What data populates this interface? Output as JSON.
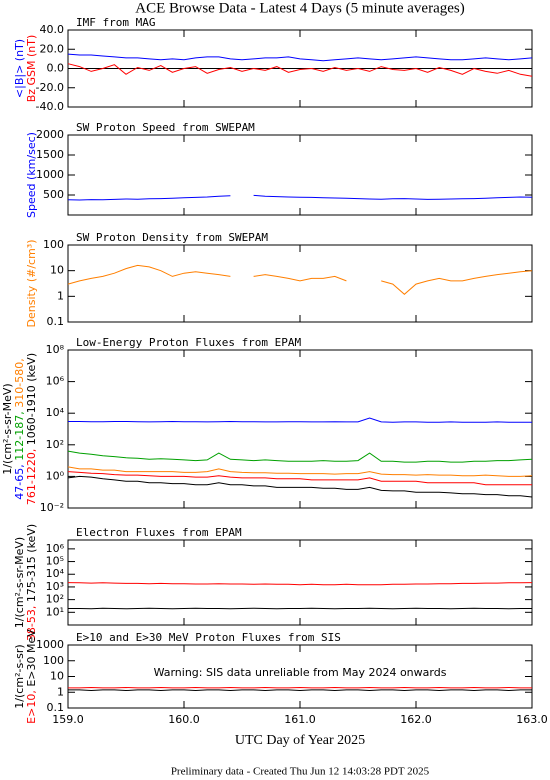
{
  "title": "ACE Browse Data - Latest 4 Days (5 minute averages)",
  "footer": "Preliminary data - Created Thu Jun 12 14:03:28 PDT 2025",
  "chart_data": [
    {
      "type": "line",
      "title": "IMF from MAG",
      "log": false,
      "zero_line": true,
      "ylabel": [
        [
          {
            "text": "<|B|> (nT)",
            "color": "#0000ff"
          }
        ],
        [
          {
            "text": "Bz GSM (nT)",
            "color": "#ff0000"
          }
        ]
      ],
      "xlim": [
        159.0,
        163.0
      ],
      "ylim": [
        -40,
        40
      ],
      "yticks": [
        {
          "value": -40,
          "label": "-40.0"
        },
        {
          "value": -20,
          "label": "-20.0"
        },
        {
          "value": 0,
          "label": "0.0"
        },
        {
          "value": 20,
          "label": "20.0"
        },
        {
          "value": 40,
          "label": "40.0"
        }
      ],
      "x": [
        159.0,
        159.1,
        159.2,
        159.3,
        159.4,
        159.5,
        159.6,
        159.7,
        159.8,
        159.9,
        160.0,
        160.1,
        160.2,
        160.3,
        160.4,
        160.5,
        160.6,
        160.7,
        160.8,
        160.9,
        161.0,
        161.1,
        161.2,
        161.3,
        161.4,
        161.5,
        161.6,
        161.7,
        161.8,
        161.9,
        162.0,
        162.1,
        162.2,
        162.3,
        162.4,
        162.5,
        162.6,
        162.7,
        162.8,
        162.9,
        163.0
      ],
      "series": [
        {
          "color": "#0000ff",
          "values": [
            15,
            14,
            14,
            13,
            12,
            11,
            11,
            10,
            9,
            10,
            9,
            11,
            12,
            12,
            10,
            9,
            10,
            11,
            11,
            12,
            10,
            9,
            8,
            9,
            10,
            11,
            10,
            9,
            10,
            11,
            12,
            11,
            10,
            9,
            9,
            10,
            11,
            10,
            9,
            10,
            11
          ]
        },
        {
          "color": "#ff0000",
          "values": [
            5,
            2,
            -3,
            0,
            4,
            -6,
            1,
            -2,
            3,
            -4,
            0,
            2,
            -5,
            -1,
            1,
            -3,
            0,
            -2,
            2,
            -4,
            -1,
            0,
            -3,
            1,
            -2,
            0,
            -3,
            2,
            -1,
            -2,
            0,
            -4,
            1,
            -2,
            -6,
            0,
            -3,
            -5,
            -2,
            -6,
            -8
          ]
        }
      ]
    },
    {
      "type": "line",
      "title": "SW Proton Speed from SWEPAM",
      "log": false,
      "ylabel": [
        [
          {
            "text": "Speed (km/sec)",
            "color": "#0000ff"
          }
        ]
      ],
      "xlim": [
        159.0,
        163.0
      ],
      "ylim": [
        0,
        2000
      ],
      "yticks": [
        500,
        1000,
        1500,
        2000
      ],
      "x": [
        159.0,
        159.1,
        159.2,
        159.3,
        159.4,
        159.5,
        159.6,
        159.7,
        159.8,
        159.9,
        160.0,
        160.1,
        160.2,
        160.3,
        160.4,
        160.5,
        160.6,
        160.7,
        160.8,
        160.9,
        161.0,
        161.1,
        161.2,
        161.3,
        161.4,
        161.5,
        161.6,
        161.7,
        161.8,
        161.9,
        162.0,
        162.1,
        162.2,
        162.3,
        162.4,
        162.5,
        162.6,
        162.7,
        162.8,
        162.9,
        163.0
      ],
      "series": [
        {
          "color": "#0000ff",
          "values": [
            380,
            375,
            385,
            380,
            390,
            400,
            395,
            405,
            410,
            420,
            430,
            440,
            450,
            470,
            480,
            null,
            490,
            470,
            460,
            450,
            445,
            440,
            430,
            425,
            420,
            410,
            400,
            395,
            405,
            410,
            400,
            390,
            395,
            400,
            405,
            410,
            420,
            430,
            440,
            450,
            445
          ]
        }
      ]
    },
    {
      "type": "line",
      "title": "SW Proton Density from SWEPAM",
      "log": true,
      "ylabel": [
        [
          {
            "text": "Density (#/cm³)",
            "color": "#ff7f00"
          }
        ]
      ],
      "xlim": [
        159.0,
        163.0
      ],
      "ylim": [
        0.1,
        100
      ],
      "yticks": [
        0.1,
        1,
        10,
        100
      ],
      "x": [
        159.0,
        159.1,
        159.2,
        159.3,
        159.4,
        159.5,
        159.6,
        159.7,
        159.8,
        159.9,
        160.0,
        160.1,
        160.2,
        160.3,
        160.4,
        160.5,
        160.6,
        160.7,
        160.8,
        160.9,
        161.0,
        161.1,
        161.2,
        161.3,
        161.4,
        161.5,
        161.6,
        161.7,
        161.8,
        161.9,
        162.0,
        162.1,
        162.2,
        162.3,
        162.4,
        162.5,
        162.6,
        162.7,
        162.8,
        162.9,
        163.0
      ],
      "series": [
        {
          "color": "#ff7f00",
          "values": [
            3,
            4,
            5,
            6,
            8,
            12,
            16,
            14,
            10,
            6,
            8,
            9,
            8,
            7,
            6,
            null,
            6,
            7,
            6,
            5,
            4,
            5,
            5,
            6,
            4,
            null,
            null,
            4,
            3,
            1.2,
            3,
            4,
            5,
            4,
            4,
            5,
            6,
            7,
            8,
            9,
            10
          ]
        }
      ]
    },
    {
      "type": "line",
      "title": "Low-Energy Proton Fluxes from EPAM",
      "log": true,
      "ylabel": [
        [
          {
            "text": "1/(cm²-s-sr-MeV)",
            "color": "#000000"
          }
        ],
        [
          {
            "text": "47-65, ",
            "color": "#0000ff"
          },
          {
            "text": "112-187, ",
            "color": "#00a000"
          },
          {
            "text": "310-580,",
            "color": "#ff7f00"
          }
        ],
        [
          {
            "text": "761-1220, ",
            "color": "#ff0000"
          },
          {
            "text": "1060-1910 (keV)",
            "color": "#000000"
          }
        ]
      ],
      "xlim": [
        159.0,
        163.0
      ],
      "ylim": [
        0.01,
        100000000
      ],
      "yticks": [
        {
          "value": 0.01,
          "label": "10⁻²"
        },
        {
          "value": 1,
          "label": "10⁰"
        },
        {
          "value": 100,
          "label": "10²"
        },
        {
          "value": 10000,
          "label": "10⁴"
        },
        {
          "value": 1000000,
          "label": "10⁶"
        },
        {
          "value": 100000000,
          "label": "10⁸"
        }
      ],
      "x": [
        159.0,
        159.1,
        159.2,
        159.3,
        159.4,
        159.5,
        159.6,
        159.7,
        159.8,
        159.9,
        160.0,
        160.1,
        160.2,
        160.3,
        160.4,
        160.5,
        160.6,
        160.7,
        160.8,
        160.9,
        161.0,
        161.1,
        161.2,
        161.3,
        161.4,
        161.5,
        161.6,
        161.7,
        161.8,
        161.9,
        162.0,
        162.1,
        162.2,
        162.3,
        162.4,
        162.5,
        162.6,
        162.7,
        162.8,
        162.9,
        163.0
      ],
      "series": [
        {
          "color": "#0000ff",
          "values": [
            3000,
            3000,
            2900,
            2900,
            3000,
            3000,
            2900,
            2800,
            2900,
            3000,
            2900,
            2900,
            2800,
            2900,
            3000,
            2900,
            2900,
            2800,
            2800,
            2900,
            2900,
            2800,
            2800,
            2900,
            2800,
            2800,
            5000,
            2800,
            2700,
            2800,
            2800,
            2700,
            2700,
            2800,
            2700,
            2700,
            2700,
            2800,
            2700,
            2700,
            2700
          ]
        },
        {
          "color": "#00a000",
          "values": [
            40,
            30,
            25,
            20,
            18,
            15,
            14,
            12,
            13,
            12,
            11,
            10,
            11,
            30,
            12,
            11,
            10,
            11,
            10,
            9,
            9,
            9,
            10,
            9,
            9,
            10,
            30,
            9,
            9,
            8,
            8,
            9,
            9,
            8,
            8,
            9,
            9,
            10,
            10,
            11,
            12
          ]
        },
        {
          "color": "#ff7f00",
          "values": [
            4,
            3,
            3,
            2.5,
            2.5,
            2,
            2,
            2,
            2,
            2,
            1.8,
            1.8,
            2,
            3,
            2,
            1.8,
            1.7,
            1.7,
            1.6,
            1.6,
            1.5,
            1.5,
            1.5,
            1.4,
            1.5,
            1.5,
            2,
            1.4,
            1.3,
            1.3,
            1.2,
            1.3,
            1.2,
            1.2,
            1.1,
            1.1,
            1.2,
            1.1,
            1.0,
            1.0,
            1.1
          ]
        },
        {
          "color": "#ff0000",
          "values": [
            2,
            1.8,
            1.6,
            1.5,
            1.3,
            1.2,
            1.2,
            1.1,
            1.0,
            1.0,
            1.0,
            0.9,
            0.9,
            1.1,
            0.9,
            0.8,
            0.8,
            0.8,
            0.7,
            0.7,
            0.7,
            0.6,
            0.6,
            0.6,
            0.6,
            0.6,
            0.8,
            0.5,
            0.5,
            0.5,
            0.5,
            0.4,
            0.4,
            0.4,
            0.4,
            0.4,
            0.3,
            0.3,
            0.3,
            0.3,
            0.3
          ]
        },
        {
          "color": "#000000",
          "values": [
            0.8,
            1.0,
            0.9,
            0.7,
            0.6,
            0.5,
            0.5,
            0.4,
            0.4,
            0.35,
            0.35,
            0.3,
            0.3,
            0.4,
            0.3,
            0.3,
            0.25,
            0.25,
            0.2,
            0.2,
            0.2,
            0.2,
            0.18,
            0.18,
            0.15,
            0.15,
            0.2,
            0.13,
            0.12,
            0.12,
            0.1,
            0.1,
            0.1,
            0.09,
            0.08,
            0.08,
            0.07,
            0.07,
            0.06,
            0.06,
            0.05
          ]
        }
      ]
    },
    {
      "type": "line",
      "title": "Electron Fluxes from EPAM",
      "log": true,
      "ylabel": [
        [
          {
            "text": "1/(cm²-s-sr-MeV)",
            "color": "#000000"
          }
        ],
        [
          {
            "text": "38-53, ",
            "color": "#ff0000"
          },
          {
            "text": "175-315 (keV)",
            "color": "#000000"
          }
        ]
      ],
      "xlim": [
        159.0,
        163.0
      ],
      "ylim": [
        1,
        5000000
      ],
      "yticks": [
        {
          "value": 10,
          "label": "10¹"
        },
        {
          "value": 100,
          "label": "10²"
        },
        {
          "value": 1000,
          "label": "10³"
        },
        {
          "value": 10000,
          "label": "10⁴"
        },
        {
          "value": 100000,
          "label": "10⁵"
        },
        {
          "value": 1000000,
          "label": "10⁶"
        }
      ],
      "x": [
        159.0,
        159.1,
        159.2,
        159.3,
        159.4,
        159.5,
        159.6,
        159.7,
        159.8,
        159.9,
        160.0,
        160.1,
        160.2,
        160.3,
        160.4,
        160.5,
        160.6,
        160.7,
        160.8,
        160.9,
        161.0,
        161.1,
        161.2,
        161.3,
        161.4,
        161.5,
        161.6,
        161.7,
        161.8,
        161.9,
        162.0,
        162.1,
        162.2,
        162.3,
        162.4,
        162.5,
        162.6,
        162.7,
        162.8,
        162.9,
        163.0
      ],
      "series": [
        {
          "color": "#ff0000",
          "values": [
            2200,
            2100,
            2000,
            2100,
            2000,
            1900,
            1900,
            1800,
            1900,
            1800,
            1800,
            1700,
            1700,
            1800,
            1700,
            1700,
            1600,
            1700,
            1600,
            1600,
            1500,
            1600,
            1500,
            1500,
            1600,
            1500,
            1500,
            1500,
            1600,
            1600,
            1700,
            1700,
            1800,
            1800,
            1900,
            1900,
            2000,
            2000,
            2100,
            2100,
            2200
          ]
        },
        {
          "color": "#000000",
          "values": [
            20,
            20,
            19,
            21,
            20,
            19,
            20,
            21,
            20,
            19,
            20,
            21,
            20,
            20,
            19,
            20,
            21,
            20,
            19,
            20,
            20,
            21,
            20,
            19,
            20,
            20,
            21,
            20,
            19,
            20,
            21,
            20,
            20,
            19,
            20,
            21,
            20,
            20,
            19,
            20,
            20
          ]
        }
      ]
    },
    {
      "type": "line",
      "title": "E>10 and E>30 MeV Proton Fluxes from SIS",
      "log": true,
      "ylabel": [
        [
          {
            "text": "1/(cm²-s-sr)",
            "color": "#000000"
          }
        ],
        [
          {
            "text": "E>10, ",
            "color": "#ff0000"
          },
          {
            "text": "E>30 MeV",
            "color": "#000000"
          }
        ]
      ],
      "annotation": {
        "text": "Warning: SIS data unreliable from May 2024 onwards",
        "color": "#ff0000"
      },
      "xlabel": "UTC Day of Year 2025",
      "xlim": [
        159.0,
        163.0
      ],
      "ylim": [
        0.1,
        1000
      ],
      "yticks": [
        0.1,
        1,
        10,
        100,
        1000
      ],
      "xticks": [
        {
          "value": 159,
          "label": "159.0"
        },
        {
          "value": 160,
          "label": "160.0"
        },
        {
          "value": 161,
          "label": "161.0"
        },
        {
          "value": 162,
          "label": "162.0"
        },
        {
          "value": 163,
          "label": "163.0"
        }
      ],
      "x": [
        159.0,
        159.1,
        159.2,
        159.3,
        159.4,
        159.5,
        159.6,
        159.7,
        159.8,
        159.9,
        160.0,
        160.1,
        160.2,
        160.3,
        160.4,
        160.5,
        160.6,
        160.7,
        160.8,
        160.9,
        161.0,
        161.1,
        161.2,
        161.3,
        161.4,
        161.5,
        161.6,
        161.7,
        161.8,
        161.9,
        162.0,
        162.1,
        162.2,
        162.3,
        162.4,
        162.5,
        162.6,
        162.7,
        162.8,
        162.9,
        163.0
      ],
      "series": [
        {
          "color": "#ff0000",
          "values": [
            1.9,
            1.9,
            2.0,
            1.9,
            1.9,
            2.0,
            1.9,
            1.9,
            2.0,
            1.9,
            1.9,
            2.0,
            1.9,
            1.9,
            2.0,
            1.9,
            1.9,
            2.0,
            1.9,
            1.9,
            2.0,
            1.9,
            1.9,
            2.0,
            1.9,
            1.9,
            2.0,
            1.9,
            1.9,
            2.0,
            1.9,
            1.9,
            2.0,
            1.9,
            1.9,
            2.0,
            1.9,
            1.9,
            2.0,
            1.9,
            1.9
          ]
        },
        {
          "color": "#000000",
          "values": [
            1.4,
            1.4,
            1.3,
            1.4,
            1.4,
            1.3,
            1.4,
            1.4,
            1.3,
            1.4,
            1.4,
            1.3,
            1.4,
            1.4,
            1.3,
            1.4,
            1.4,
            1.3,
            1.4,
            1.4,
            1.3,
            1.4,
            1.4,
            1.3,
            1.4,
            1.4,
            1.3,
            1.4,
            1.4,
            1.3,
            1.4,
            1.4,
            1.3,
            1.4,
            1.4,
            1.3,
            1.4,
            1.4,
            1.3,
            1.4,
            1.4
          ]
        }
      ]
    }
  ]
}
